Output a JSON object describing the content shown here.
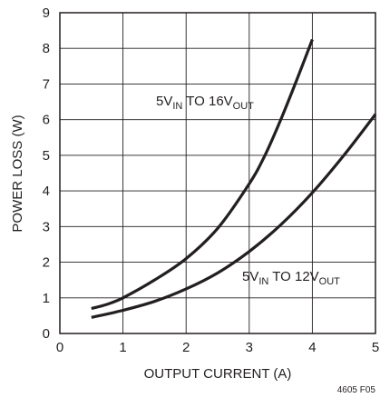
{
  "chart_data": {
    "type": "line",
    "title": "",
    "xlabel": "OUTPUT CURRENT (A)",
    "ylabel": "POWER LOSS (W)",
    "xlim": [
      0,
      5
    ],
    "ylim": [
      0,
      9
    ],
    "x_ticks": [
      "0",
      "1",
      "2",
      "3",
      "4",
      "5"
    ],
    "y_ticks": [
      "0",
      "1",
      "2",
      "3",
      "4",
      "5",
      "6",
      "7",
      "8",
      "9"
    ],
    "grid": true,
    "series": [
      {
        "label_main": "5V",
        "label_sub1": "IN",
        "label_mid": " TO 16V",
        "label_sub2": "OUT",
        "x": [
          0.5,
          0.75,
          1.0,
          1.5,
          2.0,
          2.5,
          3.0,
          3.25,
          3.5,
          3.75,
          4.0
        ],
        "y": [
          0.7,
          0.82,
          1.0,
          1.5,
          2.1,
          2.95,
          4.2,
          5.0,
          6.0,
          7.1,
          8.25
        ]
      },
      {
        "label_main": "5V",
        "label_sub1": "IN",
        "label_mid": " TO 12V",
        "label_sub2": "OUT",
        "x": [
          0.5,
          1.0,
          1.5,
          2.0,
          2.5,
          3.0,
          3.5,
          4.0,
          4.5,
          5.0
        ],
        "y": [
          0.45,
          0.65,
          0.9,
          1.25,
          1.7,
          2.3,
          3.05,
          3.95,
          5.0,
          6.15
        ]
      }
    ],
    "figure_code": "4605 F05"
  }
}
